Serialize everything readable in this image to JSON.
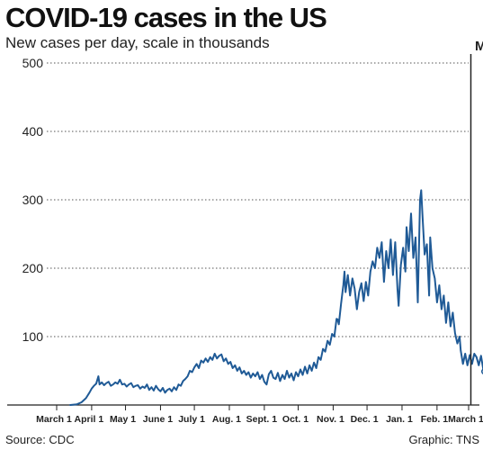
{
  "chart_data": {
    "type": "line",
    "title": "COVID-19 cases in the US",
    "subtitle": "New cases per day, scale in thousands",
    "source": "Source: CDC",
    "credit": "Graphic: TNS",
    "marker_label": "M",
    "xlabel": "",
    "ylabel": "",
    "ylim": [
      0,
      500
    ],
    "y_ticks": [
      100,
      200,
      300,
      400,
      500
    ],
    "x_ticks": [
      {
        "label": "March 1",
        "day": 0
      },
      {
        "label": "April 1",
        "day": 31
      },
      {
        "label": "May 1",
        "day": 61
      },
      {
        "label": "June 1",
        "day": 92
      },
      {
        "label": "July 1",
        "day": 122
      },
      {
        "label": "Aug. 1",
        "day": 153
      },
      {
        "label": "Sept. 1",
        "day": 184
      },
      {
        "label": "Oct. 1",
        "day": 214
      },
      {
        "label": "Nov. 1",
        "day": 245
      },
      {
        "label": "Dec. 1",
        "day": 275
      },
      {
        "label": "Jan. 1",
        "day": 306
      },
      {
        "label": "Feb. 1",
        "day": 337
      },
      {
        "label": "March 1",
        "day": 365
      }
    ],
    "grid": true,
    "colors": {
      "line": "#1f5a96",
      "grid": "#555555",
      "axis": "#222222"
    },
    "series": [
      {
        "name": "",
        "points": [
          [
            12,
            0
          ],
          [
            18,
            1
          ],
          [
            22,
            4
          ],
          [
            26,
            10
          ],
          [
            29,
            18
          ],
          [
            31,
            24
          ],
          [
            33,
            28
          ],
          [
            35,
            31
          ],
          [
            37,
            42
          ],
          [
            38,
            30
          ],
          [
            40,
            33
          ],
          [
            42,
            29
          ],
          [
            44,
            32
          ],
          [
            46,
            34
          ],
          [
            48,
            28
          ],
          [
            50,
            30
          ],
          [
            52,
            33
          ],
          [
            54,
            31
          ],
          [
            56,
            37
          ],
          [
            58,
            30
          ],
          [
            60,
            31
          ],
          [
            62,
            27
          ],
          [
            64,
            30
          ],
          [
            66,
            32
          ],
          [
            68,
            26
          ],
          [
            70,
            28
          ],
          [
            72,
            29
          ],
          [
            74,
            24
          ],
          [
            76,
            27
          ],
          [
            78,
            25
          ],
          [
            80,
            30
          ],
          [
            82,
            22
          ],
          [
            84,
            26
          ],
          [
            86,
            21
          ],
          [
            88,
            28
          ],
          [
            90,
            23
          ],
          [
            92,
            20
          ],
          [
            94,
            25
          ],
          [
            96,
            18
          ],
          [
            98,
            22
          ],
          [
            100,
            24
          ],
          [
            102,
            20
          ],
          [
            104,
            26
          ],
          [
            106,
            22
          ],
          [
            108,
            30
          ],
          [
            110,
            28
          ],
          [
            112,
            35
          ],
          [
            114,
            38
          ],
          [
            116,
            42
          ],
          [
            118,
            50
          ],
          [
            120,
            48
          ],
          [
            122,
            55
          ],
          [
            124,
            60
          ],
          [
            126,
            54
          ],
          [
            128,
            65
          ],
          [
            130,
            62
          ],
          [
            132,
            68
          ],
          [
            134,
            63
          ],
          [
            136,
            70
          ],
          [
            138,
            66
          ],
          [
            140,
            75
          ],
          [
            142,
            68
          ],
          [
            144,
            72
          ],
          [
            146,
            74
          ],
          [
            148,
            64
          ],
          [
            150,
            68
          ],
          [
            152,
            60
          ],
          [
            154,
            63
          ],
          [
            156,
            54
          ],
          [
            158,
            58
          ],
          [
            160,
            50
          ],
          [
            162,
            55
          ],
          [
            164,
            46
          ],
          [
            166,
            50
          ],
          [
            168,
            44
          ],
          [
            170,
            48
          ],
          [
            172,
            40
          ],
          [
            174,
            46
          ],
          [
            176,
            42
          ],
          [
            178,
            48
          ],
          [
            180,
            38
          ],
          [
            182,
            44
          ],
          [
            184,
            34
          ],
          [
            186,
            30
          ],
          [
            188,
            45
          ],
          [
            190,
            50
          ],
          [
            192,
            40
          ],
          [
            194,
            38
          ],
          [
            196,
            47
          ],
          [
            198,
            35
          ],
          [
            200,
            44
          ],
          [
            202,
            38
          ],
          [
            204,
            50
          ],
          [
            206,
            40
          ],
          [
            208,
            46
          ],
          [
            210,
            36
          ],
          [
            212,
            48
          ],
          [
            214,
            42
          ],
          [
            216,
            52
          ],
          [
            218,
            44
          ],
          [
            220,
            56
          ],
          [
            222,
            46
          ],
          [
            224,
            58
          ],
          [
            226,
            50
          ],
          [
            228,
            62
          ],
          [
            230,
            54
          ],
          [
            232,
            70
          ],
          [
            234,
            66
          ],
          [
            236,
            82
          ],
          [
            238,
            78
          ],
          [
            240,
            94
          ],
          [
            242,
            88
          ],
          [
            244,
            104
          ],
          [
            246,
            100
          ],
          [
            248,
            126
          ],
          [
            249,
            125
          ],
          [
            250,
            118
          ],
          [
            252,
            148
          ],
          [
            254,
            175
          ],
          [
            255,
            195
          ],
          [
            256,
            165
          ],
          [
            258,
            190
          ],
          [
            260,
            160
          ],
          [
            262,
            185
          ],
          [
            264,
            170
          ],
          [
            266,
            140
          ],
          [
            268,
            165
          ],
          [
            270,
            178
          ],
          [
            272,
            152
          ],
          [
            274,
            180
          ],
          [
            276,
            160
          ],
          [
            278,
            195
          ],
          [
            280,
            210
          ],
          [
            282,
            200
          ],
          [
            284,
            230
          ],
          [
            286,
            215
          ],
          [
            288,
            238
          ],
          [
            290,
            180
          ],
          [
            292,
            225
          ],
          [
            294,
            200
          ],
          [
            296,
            242
          ],
          [
            298,
            190
          ],
          [
            300,
            238
          ],
          [
            302,
            170
          ],
          [
            303,
            145
          ],
          [
            305,
            205
          ],
          [
            307,
            230
          ],
          [
            309,
            195
          ],
          [
            310,
            260
          ],
          [
            312,
            225
          ],
          [
            314,
            280
          ],
          [
            316,
            215
          ],
          [
            318,
            245
          ],
          [
            320,
            150
          ],
          [
            322,
            300
          ],
          [
            323,
            314
          ],
          [
            324,
            280
          ],
          [
            326,
            220
          ],
          [
            328,
            235
          ],
          [
            330,
            160
          ],
          [
            331,
            245
          ],
          [
            333,
            200
          ],
          [
            335,
            185
          ],
          [
            337,
            150
          ],
          [
            339,
            175
          ],
          [
            341,
            140
          ],
          [
            343,
            160
          ],
          [
            345,
            120
          ],
          [
            347,
            150
          ],
          [
            349,
            115
          ],
          [
            351,
            135
          ],
          [
            353,
            105
          ],
          [
            355,
            90
          ],
          [
            357,
            100
          ],
          [
            358,
            80
          ],
          [
            360,
            60
          ],
          [
            362,
            75
          ],
          [
            364,
            58
          ],
          [
            366,
            73
          ],
          [
            368,
            60
          ],
          [
            370,
            75
          ],
          [
            372,
            70
          ],
          [
            374,
            58
          ],
          [
            376,
            72
          ],
          [
            378,
            52
          ],
          [
            379,
            49
          ]
        ]
      }
    ]
  }
}
